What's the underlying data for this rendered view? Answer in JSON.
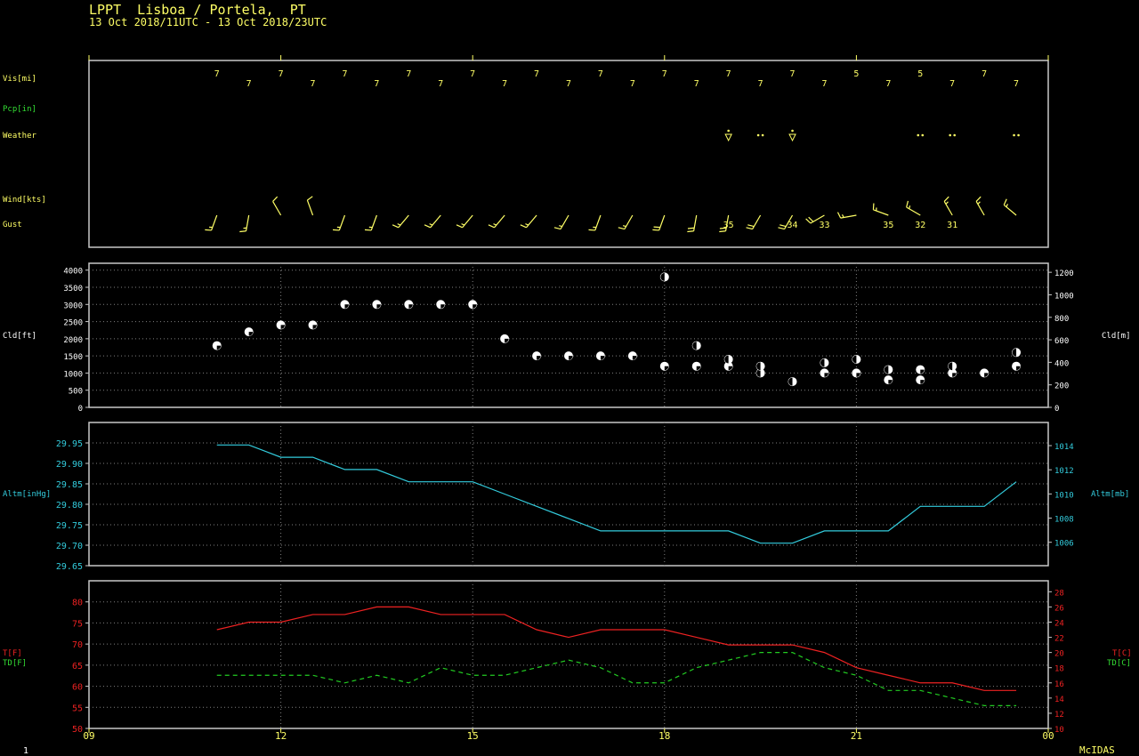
{
  "header": {
    "station_line": "LPPT  Lisboa / Portela,  PT",
    "period_line": "13 Oct 2018/11UTC - 13 Oct 2018/23UTC"
  },
  "footer": {
    "left_label": "1",
    "brand": "McIDAS"
  },
  "colors": {
    "background": "#000000",
    "frame": "#c8c8c8",
    "grid": "#808080",
    "label_yellow": "#ffff66",
    "label_green": "#33dd33",
    "cyan": "#33ccdd",
    "temp_red": "#ee2222",
    "dew_green": "#22cc22",
    "white": "#ffffff"
  },
  "time_axis": {
    "start_hour": 9,
    "end_hour": 24,
    "tick_hours": [
      9,
      12,
      15,
      18,
      21,
      24
    ],
    "tick_labels": [
      "09",
      "12",
      "15",
      "18",
      "21",
      "00"
    ]
  },
  "chart_data": [
    {
      "type": "table",
      "panel": "surface_obs",
      "row_labels": {
        "visibility": "Vis[mi]",
        "precip": "Pcp[in]",
        "weather": "Weather",
        "wind": "Wind[kts]",
        "gust": "Gust"
      },
      "hours": [
        11,
        11.5,
        12,
        12.5,
        13,
        13.5,
        14,
        14.5,
        15,
        15.5,
        16,
        16.5,
        17,
        17.5,
        18,
        18.5,
        19,
        19.5,
        20,
        20.5,
        21,
        21.5,
        22,
        22.5,
        23,
        23.5
      ],
      "visibility": [
        "7",
        "7",
        "7",
        "7",
        "7",
        "7",
        "7",
        "7",
        "7",
        "7",
        "7",
        "7",
        "7",
        "7",
        "7",
        "7",
        "7",
        "7",
        "7",
        "7",
        "5",
        "7",
        "5",
        "7",
        "7",
        "7"
      ],
      "weather": [
        "",
        "",
        "",
        "",
        "",
        "",
        "",
        "",
        "",
        "",
        "",
        "",
        "",
        "",
        "",
        "",
        "shower",
        "rain",
        "shower",
        "",
        "",
        "",
        "rain",
        "rain",
        "",
        "rain"
      ],
      "wind_dir_deg": [
        200,
        190,
        330,
        340,
        200,
        200,
        220,
        220,
        220,
        220,
        220,
        210,
        200,
        210,
        200,
        190,
        190,
        210,
        210,
        240,
        260,
        290,
        300,
        330,
        330,
        310
      ],
      "wind_speed_kts": [
        15,
        15,
        10,
        10,
        15,
        15,
        15,
        15,
        15,
        15,
        15,
        15,
        15,
        15,
        20,
        20,
        20,
        20,
        20,
        20,
        15,
        15,
        15,
        15,
        15,
        15
      ],
      "gust_kts": [
        "",
        "",
        "",
        "",
        "",
        "",
        "",
        "",
        "",
        "",
        "",
        "",
        "",
        "",
        "",
        "",
        "35",
        "",
        "34",
        "33",
        "",
        "35",
        "32",
        "31",
        "",
        ""
      ]
    },
    {
      "type": "scatter",
      "panel": "clouds",
      "ylabel_left": "Cld[ft]",
      "ylabel_right": "Cld[m]",
      "ylim": [
        0,
        4200
      ],
      "yticks_left": [
        0,
        500,
        1000,
        1500,
        2000,
        2500,
        3000,
        3500,
        4000
      ],
      "yticks_right": [
        0,
        200,
        400,
        600,
        800,
        1000,
        1200
      ],
      "points": [
        {
          "hour": 11,
          "ft": 1800,
          "cover": "sct"
        },
        {
          "hour": 11.5,
          "ft": 2200,
          "cover": "sct"
        },
        {
          "hour": 12,
          "ft": 2400,
          "cover": "sct"
        },
        {
          "hour": 12.5,
          "ft": 2400,
          "cover": "sct"
        },
        {
          "hour": 13,
          "ft": 3000,
          "cover": "sct"
        },
        {
          "hour": 13.5,
          "ft": 3000,
          "cover": "sct"
        },
        {
          "hour": 14,
          "ft": 3000,
          "cover": "sct"
        },
        {
          "hour": 14.5,
          "ft": 3000,
          "cover": "sct"
        },
        {
          "hour": 15,
          "ft": 3000,
          "cover": "sct"
        },
        {
          "hour": 15.5,
          "ft": 2000,
          "cover": "sct"
        },
        {
          "hour": 16,
          "ft": 1500,
          "cover": "sct"
        },
        {
          "hour": 16.5,
          "ft": 1500,
          "cover": "sct"
        },
        {
          "hour": 17,
          "ft": 1500,
          "cover": "sct"
        },
        {
          "hour": 17.5,
          "ft": 1500,
          "cover": "sct"
        },
        {
          "hour": 18,
          "ft": 1200,
          "cover": "sct"
        },
        {
          "hour": 18,
          "ft": 3800,
          "cover": "bkn"
        },
        {
          "hour": 18.5,
          "ft": 1200,
          "cover": "sct"
        },
        {
          "hour": 18.5,
          "ft": 1800,
          "cover": "bkn"
        },
        {
          "hour": 19,
          "ft": 1200,
          "cover": "sct"
        },
        {
          "hour": 19,
          "ft": 1400,
          "cover": "bkn"
        },
        {
          "hour": 19.5,
          "ft": 1000,
          "cover": "bkn"
        },
        {
          "hour": 19.5,
          "ft": 1200,
          "cover": "bkn"
        },
        {
          "hour": 20,
          "ft": 750,
          "cover": "bkn"
        },
        {
          "hour": 20.5,
          "ft": 1000,
          "cover": "sct"
        },
        {
          "hour": 20.5,
          "ft": 1300,
          "cover": "bkn"
        },
        {
          "hour": 21,
          "ft": 1000,
          "cover": "sct"
        },
        {
          "hour": 21,
          "ft": 1400,
          "cover": "bkn"
        },
        {
          "hour": 21.5,
          "ft": 800,
          "cover": "sct"
        },
        {
          "hour": 21.5,
          "ft": 1100,
          "cover": "bkn"
        },
        {
          "hour": 22,
          "ft": 800,
          "cover": "sct"
        },
        {
          "hour": 22,
          "ft": 1100,
          "cover": "sct"
        },
        {
          "hour": 22.5,
          "ft": 1000,
          "cover": "sct"
        },
        {
          "hour": 22.5,
          "ft": 1200,
          "cover": "bkn"
        },
        {
          "hour": 23,
          "ft": 1000,
          "cover": "sct"
        },
        {
          "hour": 23.5,
          "ft": 1200,
          "cover": "sct"
        },
        {
          "hour": 23.5,
          "ft": 1600,
          "cover": "bkn"
        }
      ]
    },
    {
      "type": "line",
      "panel": "altimeter",
      "ylabel_left": "Altm[inHg]",
      "ylabel_right": "Altm[mb]",
      "ylim": [
        29.65,
        30.0
      ],
      "yticks_left": [
        29.65,
        29.7,
        29.75,
        29.8,
        29.85,
        29.9,
        29.95
      ],
      "yticks_left_labels": [
        "29.65",
        "29.70",
        "29.75",
        "29.80",
        "29.85",
        "29.90",
        "29.95"
      ],
      "yticks_right": [
        1006,
        1008,
        1010,
        1012,
        1014
      ],
      "x": [
        11,
        11.5,
        12,
        12.5,
        13,
        13.5,
        14,
        14.5,
        15,
        15.5,
        16,
        16.5,
        17,
        17.5,
        18,
        18.5,
        19,
        19.5,
        20,
        20.5,
        21,
        21.5,
        22,
        22.5,
        23,
        23.5
      ],
      "values": [
        29.945,
        29.945,
        29.915,
        29.915,
        29.885,
        29.885,
        29.855,
        29.855,
        29.855,
        29.825,
        29.795,
        29.765,
        29.735,
        29.735,
        29.735,
        29.735,
        29.735,
        29.705,
        29.705,
        29.735,
        29.735,
        29.735,
        29.795,
        29.795,
        29.795,
        29.855
      ]
    },
    {
      "type": "line",
      "panel": "temperature",
      "ylabel_left_t": "T[F]",
      "ylabel_left_td": "TD[F]",
      "ylabel_right_t": "T[C]",
      "ylabel_right_td": "TD[C]",
      "ylim": [
        50,
        85
      ],
      "yticks_left": [
        50,
        55,
        60,
        65,
        70,
        75,
        80
      ],
      "yticks_right": [
        10,
        12,
        14,
        16,
        18,
        20,
        22,
        24,
        26,
        28
      ],
      "x": [
        11,
        11.5,
        12,
        12.5,
        13,
        13.5,
        14,
        14.5,
        15,
        15.5,
        16,
        16.5,
        17,
        17.5,
        18,
        18.5,
        19,
        19.5,
        20,
        20.5,
        21,
        21.5,
        22,
        22.5,
        23,
        23.5
      ],
      "series": [
        {
          "key": "temp",
          "values": [
            73.4,
            75.2,
            75.2,
            77.0,
            77.0,
            78.8,
            78.8,
            77.0,
            77.0,
            77.0,
            73.4,
            71.6,
            73.4,
            73.4,
            73.4,
            71.6,
            69.8,
            69.8,
            69.8,
            68.0,
            64.4,
            62.6,
            60.8,
            60.8,
            59.0,
            59.0
          ]
        },
        {
          "key": "dew",
          "values": [
            62.6,
            62.6,
            62.6,
            62.6,
            60.8,
            62.6,
            60.8,
            64.4,
            62.6,
            62.6,
            64.4,
            66.2,
            64.4,
            60.8,
            60.8,
            64.4,
            66.2,
            68.0,
            68.0,
            64.4,
            62.6,
            59.0,
            59.0,
            57.2,
            55.4,
            55.4
          ]
        }
      ]
    }
  ]
}
